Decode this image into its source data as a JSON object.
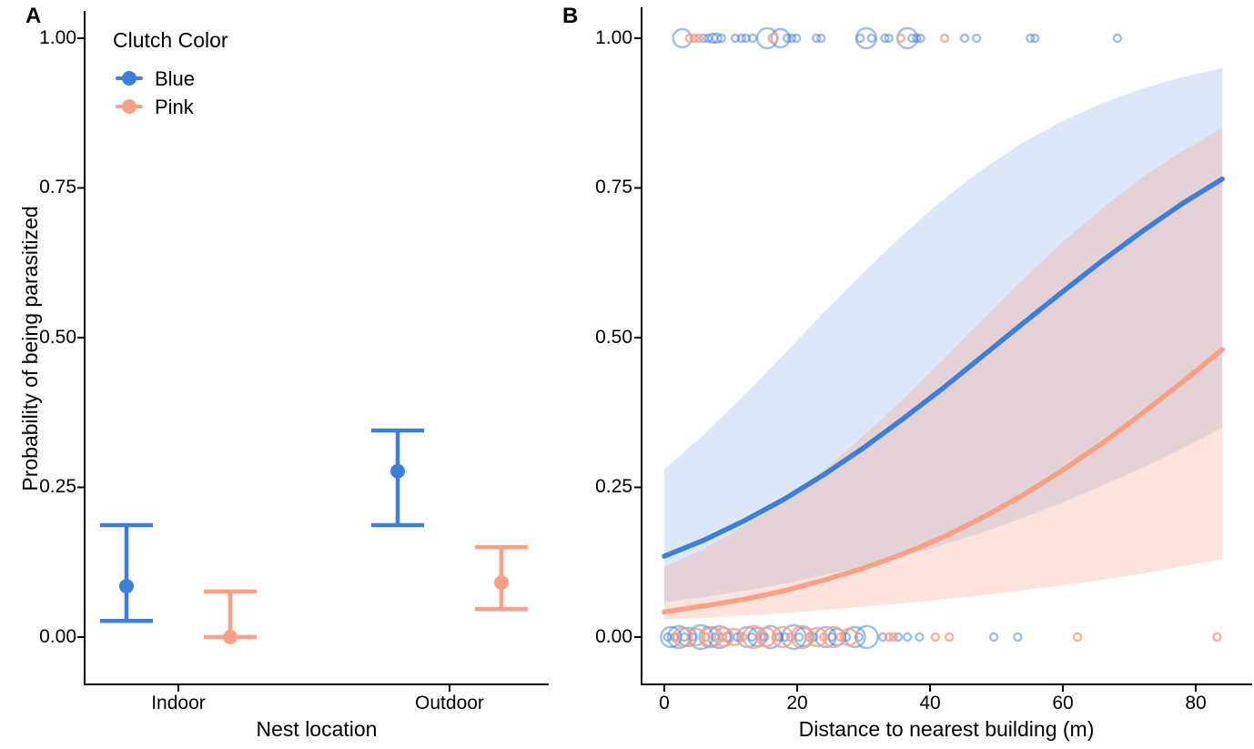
{
  "chart_data": [
    {
      "panel_label": "A",
      "type": "pointrange",
      "title": "",
      "xlabel": "Nest location",
      "ylabel": "Probability of being parasitized",
      "categories": [
        "Indoor",
        "Outdoor"
      ],
      "yticks": [
        0,
        0.25,
        0.5,
        0.75,
        1
      ],
      "ytick_labels": [
        "0.00",
        "0.25",
        "0.50",
        "0.75",
        "1.00"
      ],
      "ylim": [
        0,
        1
      ],
      "grid": false,
      "legend": {
        "title": "Clutch Color",
        "position": "top-left-inside",
        "entries": [
          {
            "label": "Blue",
            "color": "#3D7EDB"
          },
          {
            "label": "Pink",
            "color": "#F9A087"
          }
        ]
      },
      "series": [
        {
          "name": "Blue",
          "color": "#3D7EDB",
          "points": [
            {
              "category": "Indoor",
              "mean": 0.085,
              "lo": 0.027,
              "hi": 0.187
            },
            {
              "category": "Outdoor",
              "mean": 0.277,
              "lo": 0.187,
              "hi": 0.345
            }
          ]
        },
        {
          "name": "Pink",
          "color": "#F9A087",
          "points": [
            {
              "category": "Indoor",
              "mean": 0.0,
              "lo": 0.0,
              "hi": 0.076
            },
            {
              "category": "Outdoor",
              "mean": 0.091,
              "lo": 0.047,
              "hi": 0.15
            }
          ]
        }
      ]
    },
    {
      "panel_label": "B",
      "type": "line",
      "title": "",
      "xlabel": "Distance to nearest building (m)",
      "ylabel": "",
      "xticks": [
        0,
        20,
        40,
        60,
        80
      ],
      "xtick_labels": [
        "0",
        "20",
        "40",
        "60",
        "80"
      ],
      "yticks": [
        0,
        0.25,
        0.5,
        0.75,
        1
      ],
      "ytick_labels": [
        "0.00",
        "0.25",
        "0.50",
        "0.75",
        "1.00"
      ],
      "xlim": [
        -3.5,
        88
      ],
      "ylim": [
        -0.08,
        1.07
      ],
      "grid": false,
      "x_samples": [
        0,
        6,
        12,
        18,
        24,
        30,
        36,
        42,
        48,
        54,
        60,
        66,
        72,
        78,
        84
      ],
      "curves": [
        {
          "name": "Blue",
          "color": "#3D7EDB",
          "band_fill": "rgba(61,126,219,0.18)",
          "y": [
            0.135,
            0.162,
            0.194,
            0.23,
            0.271,
            0.316,
            0.365,
            0.416,
            0.47,
            0.524,
            0.577,
            0.629,
            0.678,
            0.724,
            0.765
          ],
          "band_lo": [
            0.058,
            0.067,
            0.077,
            0.089,
            0.103,
            0.118,
            0.135,
            0.154,
            0.175,
            0.199,
            0.225,
            0.253,
            0.283,
            0.315,
            0.35
          ],
          "band_hi": [
            0.28,
            0.339,
            0.404,
            0.472,
            0.542,
            0.609,
            0.673,
            0.731,
            0.782,
            0.826,
            0.862,
            0.892,
            0.916,
            0.935,
            0.95
          ]
        },
        {
          "name": "Pink",
          "color": "#F9A087",
          "band_fill": "rgba(248,158,131,0.29)",
          "y": [
            0.042,
            0.052,
            0.063,
            0.077,
            0.095,
            0.115,
            0.139,
            0.167,
            0.2,
            0.237,
            0.279,
            0.324,
            0.374,
            0.426,
            0.48
          ],
          "band_lo": [
            0.029,
            0.032,
            0.036,
            0.04,
            0.045,
            0.051,
            0.056,
            0.063,
            0.07,
            0.078,
            0.086,
            0.096,
            0.106,
            0.118,
            0.13
          ],
          "band_hi": [
            0.117,
            0.148,
            0.185,
            0.229,
            0.279,
            0.336,
            0.398,
            0.464,
            0.531,
            0.597,
            0.66,
            0.717,
            0.768,
            0.812,
            0.85
          ]
        }
      ],
      "point_colors": {
        "B": "rgba(61,126,219,0.5)",
        "P": "rgba(248,158,131,0.8)"
      },
      "points_xyrg": [
        [
          2.7,
          1,
          10,
          "B"
        ],
        [
          5.9,
          1,
          4,
          "B"
        ],
        [
          6.6,
          1,
          4,
          "B"
        ],
        [
          7.3,
          1,
          5,
          "B"
        ],
        [
          7.9,
          1,
          5,
          "B"
        ],
        [
          8.6,
          1,
          4,
          "B"
        ],
        [
          10.7,
          1,
          4,
          "B"
        ],
        [
          11.6,
          1,
          4,
          "B"
        ],
        [
          12.3,
          1,
          4,
          "B"
        ],
        [
          13.3,
          1,
          4,
          "B"
        ],
        [
          15.5,
          1,
          11,
          "B"
        ],
        [
          17.5,
          1,
          10,
          "B"
        ],
        [
          18.5,
          1,
          4,
          "B"
        ],
        [
          19.2,
          1,
          4,
          "B"
        ],
        [
          19.9,
          1,
          4,
          "B"
        ],
        [
          22.9,
          1,
          4,
          "B"
        ],
        [
          23.6,
          1,
          4,
          "B"
        ],
        [
          29.5,
          1,
          4,
          "B"
        ],
        [
          30.4,
          1,
          11,
          "B"
        ],
        [
          31.2,
          1,
          4,
          "B"
        ],
        [
          33.2,
          1,
          4,
          "B"
        ],
        [
          33.8,
          1,
          4,
          "B"
        ],
        [
          36.6,
          1,
          11,
          "B"
        ],
        [
          37.3,
          1,
          4,
          "B"
        ],
        [
          38.0,
          1,
          4,
          "B"
        ],
        [
          38.6,
          1,
          4,
          "B"
        ],
        [
          45.2,
          1,
          4,
          "B"
        ],
        [
          47.0,
          1,
          4,
          "B"
        ],
        [
          55.1,
          1,
          4,
          "B"
        ],
        [
          55.8,
          1,
          4,
          "B"
        ],
        [
          68.2,
          1,
          4,
          "B"
        ],
        [
          3.8,
          1,
          4,
          "P"
        ],
        [
          4.5,
          1,
          4,
          "P"
        ],
        [
          5.2,
          1,
          4,
          "P"
        ],
        [
          16.4,
          1,
          5,
          "P"
        ],
        [
          35.6,
          1,
          4,
          "P"
        ],
        [
          42.2,
          1,
          4,
          "P"
        ],
        [
          1.0,
          0,
          11,
          "B"
        ],
        [
          2.2,
          0,
          12,
          "B"
        ],
        [
          3.5,
          0,
          10,
          "B"
        ],
        [
          5.5,
          0,
          13,
          "B"
        ],
        [
          6.8,
          0,
          11,
          "B"
        ],
        [
          8.3,
          0,
          12,
          "B"
        ],
        [
          12.5,
          0,
          11,
          "B"
        ],
        [
          14.0,
          0,
          10,
          "B"
        ],
        [
          16.0,
          0,
          12,
          "B"
        ],
        [
          19.5,
          0,
          13,
          "B"
        ],
        [
          21.0,
          0,
          10,
          "B"
        ],
        [
          24.3,
          0,
          11,
          "B"
        ],
        [
          26.0,
          0,
          9,
          "B"
        ],
        [
          28.7,
          0,
          11,
          "B"
        ],
        [
          30.5,
          0,
          12,
          "B"
        ],
        [
          0.5,
          0,
          4,
          "B"
        ],
        [
          1.5,
          0,
          4,
          "B"
        ],
        [
          3.0,
          0,
          4,
          "B"
        ],
        [
          4.2,
          0,
          4,
          "B"
        ],
        [
          7.6,
          0,
          4,
          "B"
        ],
        [
          9.5,
          0,
          5,
          "B"
        ],
        [
          11.0,
          0,
          4,
          "B"
        ],
        [
          13.2,
          0,
          4,
          "B"
        ],
        [
          15.1,
          0,
          4,
          "B"
        ],
        [
          17.3,
          0,
          4,
          "B"
        ],
        [
          18.2,
          0,
          4,
          "B"
        ],
        [
          20.3,
          0,
          4,
          "B"
        ],
        [
          22.5,
          0,
          4,
          "B"
        ],
        [
          25.2,
          0,
          4,
          "B"
        ],
        [
          27.4,
          0,
          4,
          "B"
        ],
        [
          29.3,
          0,
          4,
          "B"
        ],
        [
          32.9,
          0,
          4,
          "B"
        ],
        [
          35.2,
          0,
          4,
          "B"
        ],
        [
          36.6,
          0,
          4,
          "B"
        ],
        [
          38.4,
          0,
          4,
          "B"
        ],
        [
          49.6,
          0,
          4,
          "B"
        ],
        [
          53.2,
          0,
          4,
          "B"
        ],
        [
          2.8,
          0,
          10,
          "P"
        ],
        [
          4.8,
          0,
          9,
          "P"
        ],
        [
          7.2,
          0,
          11,
          "P"
        ],
        [
          9.0,
          0,
          10,
          "P"
        ],
        [
          10.5,
          0,
          9,
          "P"
        ],
        [
          13.5,
          0,
          12,
          "P"
        ],
        [
          15.3,
          0,
          10,
          "P"
        ],
        [
          17.8,
          0,
          11,
          "P"
        ],
        [
          20.8,
          0,
          12,
          "P"
        ],
        [
          23.0,
          0,
          10,
          "P"
        ],
        [
          25.5,
          0,
          11,
          "P"
        ],
        [
          27.8,
          0,
          9,
          "P"
        ],
        [
          1.8,
          0,
          4,
          "P"
        ],
        [
          6.2,
          0,
          4,
          "P"
        ],
        [
          8.8,
          0,
          4,
          "P"
        ],
        [
          11.8,
          0,
          4,
          "P"
        ],
        [
          14.6,
          0,
          4,
          "P"
        ],
        [
          16.8,
          0,
          4,
          "P"
        ],
        [
          19.0,
          0,
          4,
          "P"
        ],
        [
          21.8,
          0,
          4,
          "P"
        ],
        [
          24.0,
          0,
          4,
          "P"
        ],
        [
          26.5,
          0,
          4,
          "P"
        ],
        [
          33.8,
          0,
          4,
          "P"
        ],
        [
          34.5,
          0,
          4,
          "P"
        ],
        [
          40.8,
          0,
          4,
          "P"
        ],
        [
          42.9,
          0,
          4,
          "P"
        ],
        [
          62.2,
          0,
          4,
          "P"
        ],
        [
          83.2,
          0,
          4,
          "P"
        ]
      ]
    }
  ]
}
